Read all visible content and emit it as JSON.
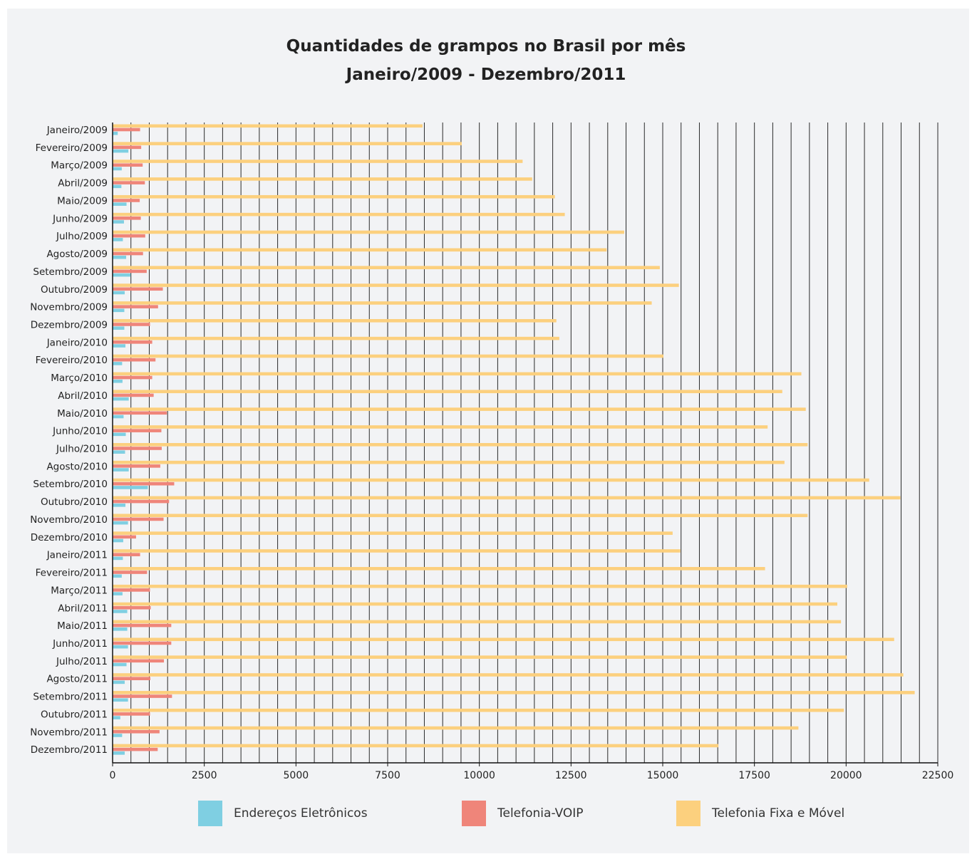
{
  "chart_data": {
    "type": "bar",
    "orientation": "horizontal",
    "title": "Quantidades de grampos no Brasil por mês",
    "subtitle": "Janeiro/2009 - Dezembro/2011",
    "xlim": [
      0,
      22500
    ],
    "x_ticks": [
      "0",
      "2500",
      "5000",
      "7500",
      "10000",
      "12500",
      "15000",
      "17500",
      "20000",
      "22500"
    ],
    "grid": "vertical",
    "legend_position": "bottom",
    "categories": [
      "Janeiro/2009",
      "Fevereiro/2009",
      "Março/2009",
      "Abril/2009",
      "Maio/2009",
      "Junho/2009",
      "Julho/2009",
      "Agosto/2009",
      "Setembro/2009",
      "Outubro/2009",
      "Novembro/2009",
      "Dezembro/2009",
      "Janeiro/2010",
      "Fevereiro/2010",
      "Março/2010",
      "Abril/2010",
      "Maio/2010",
      "Junho/2010",
      "Julho/2010",
      "Agosto/2010",
      "Setembro/2010",
      "Outubro/2010",
      "Novembro/2010",
      "Dezembro/2010",
      "Janeiro/2011",
      "Fevereiro/2011",
      "Março/2011",
      "Abril/2011",
      "Maio/2011",
      "Junho/2011",
      "Julho/2011",
      "Agosto/2011",
      "Setembro/2011",
      "Outubro/2011",
      "Novembro/2011",
      "Dezembro/2011"
    ],
    "series": [
      {
        "name": "Telefonia Fixa e Móvel",
        "color": "#fcd07e",
        "values": [
          8450,
          9520,
          11180,
          11440,
          12060,
          12330,
          13950,
          13470,
          14920,
          15440,
          14700,
          12100,
          12180,
          15020,
          18780,
          18260,
          18900,
          17860,
          18950,
          18320,
          20630,
          21480,
          18950,
          15270,
          15480,
          17790,
          20030,
          19760,
          19860,
          21310,
          20020,
          21560,
          21870,
          19940,
          18700,
          16520
        ]
      },
      {
        "name": "Telefonia-VOIP",
        "color": "#ef857a",
        "values": [
          750,
          780,
          820,
          880,
          740,
          770,
          890,
          830,
          930,
          1370,
          1240,
          1020,
          1080,
          1170,
          1080,
          1120,
          1480,
          1330,
          1340,
          1300,
          1680,
          1540,
          1390,
          640,
          750,
          940,
          1020,
          1040,
          1600,
          1600,
          1400,
          1030,
          1620,
          1020,
          1280,
          1230
        ]
      },
      {
        "name": "Endereços Eletrônicos",
        "color": "#7fcfe2",
        "values": [
          140,
          430,
          250,
          240,
          380,
          310,
          280,
          370,
          490,
          330,
          320,
          320,
          350,
          260,
          270,
          440,
          300,
          360,
          340,
          440,
          960,
          350,
          420,
          290,
          280,
          250,
          270,
          400,
          400,
          420,
          380,
          330,
          420,
          210,
          260,
          330
        ]
      }
    ],
    "legend": [
      {
        "name": "Endereços Eletrônicos",
        "color": "#7fcfe2"
      },
      {
        "name": "Telefonia-VOIP",
        "color": "#ef857a"
      },
      {
        "name": "Telefonia Fixa e Móvel",
        "color": "#fcd07e"
      }
    ]
  }
}
